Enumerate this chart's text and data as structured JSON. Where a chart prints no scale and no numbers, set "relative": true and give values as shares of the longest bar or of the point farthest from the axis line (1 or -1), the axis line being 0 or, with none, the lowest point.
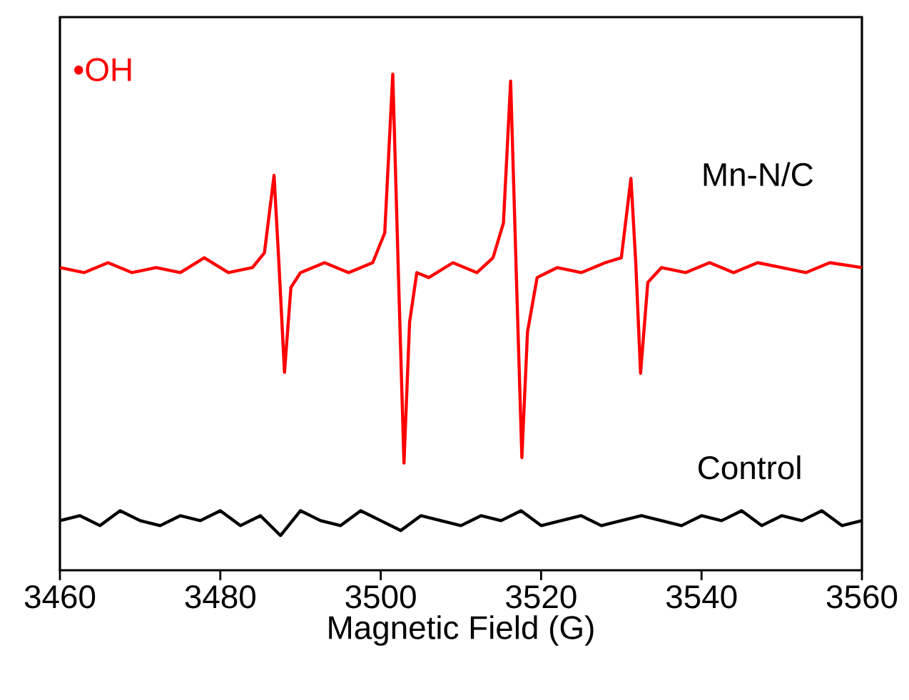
{
  "chart_data": {
    "type": "line",
    "relative": true,
    "xlabel": "Magnetic Field  (G)",
    "annotations": [
      "•OH"
    ],
    "xlim": [
      3460,
      3560
    ],
    "xticks": [
      3460,
      3480,
      3500,
      3520,
      3540,
      3560
    ],
    "grid": false,
    "marker": "none",
    "line_style": "solid",
    "series": [
      {
        "name": "Mn-N/C",
        "color": "#ff0000",
        "x": [
          3460,
          3463,
          3466,
          3469,
          3472,
          3475,
          3478,
          3481,
          3484,
          3485.5,
          3486.7,
          3487.3,
          3488.0,
          3488.8,
          3490,
          3493,
          3496,
          3499,
          3500.5,
          3501.5,
          3502.2,
          3502.9,
          3503.6,
          3504.5,
          3506,
          3509,
          3512,
          3514,
          3515.3,
          3516.2,
          3516.9,
          3517.6,
          3518.3,
          3519.5,
          3522,
          3525,
          3528,
          3530,
          3531.2,
          3531.8,
          3532.4,
          3533.3,
          3535,
          3538,
          3541,
          3544,
          3547,
          3550,
          3553,
          3556,
          3560
        ],
        "values": [
          0.61,
          0.6,
          0.62,
          0.6,
          0.61,
          0.6,
          0.63,
          0.6,
          0.61,
          0.64,
          0.796,
          0.62,
          0.399,
          0.57,
          0.6,
          0.62,
          0.6,
          0.62,
          0.68,
          1.0,
          0.6,
          0.216,
          0.5,
          0.6,
          0.59,
          0.62,
          0.6,
          0.63,
          0.7,
          0.986,
          0.6,
          0.227,
          0.48,
          0.59,
          0.61,
          0.6,
          0.62,
          0.63,
          0.79,
          0.62,
          0.397,
          0.58,
          0.61,
          0.6,
          0.62,
          0.6,
          0.62,
          0.61,
          0.6,
          0.62,
          0.61
        ]
      },
      {
        "name": "Control",
        "color": "#000000",
        "x": [
          3460,
          3462.5,
          3465,
          3467.5,
          3470,
          3472.5,
          3475,
          3477.5,
          3480,
          3482.5,
          3485,
          3487.5,
          3490,
          3492.5,
          3495,
          3497.5,
          3500,
          3502.5,
          3505,
          3507.5,
          3510,
          3512.5,
          3515,
          3517.5,
          3520,
          3522.5,
          3525,
          3527.5,
          3530,
          3532.5,
          3535,
          3537.5,
          3540,
          3542.5,
          3545,
          3547.5,
          3550,
          3552.5,
          3555,
          3557.5,
          3560
        ],
        "values": [
          0.1,
          0.11,
          0.09,
          0.12,
          0.1,
          0.09,
          0.11,
          0.1,
          0.12,
          0.09,
          0.11,
          0.07,
          0.12,
          0.1,
          0.09,
          0.12,
          0.1,
          0.08,
          0.11,
          0.1,
          0.09,
          0.11,
          0.1,
          0.12,
          0.09,
          0.1,
          0.11,
          0.09,
          0.1,
          0.11,
          0.1,
          0.09,
          0.11,
          0.1,
          0.12,
          0.09,
          0.11,
          0.1,
          0.12,
          0.09,
          0.1
        ]
      }
    ]
  }
}
